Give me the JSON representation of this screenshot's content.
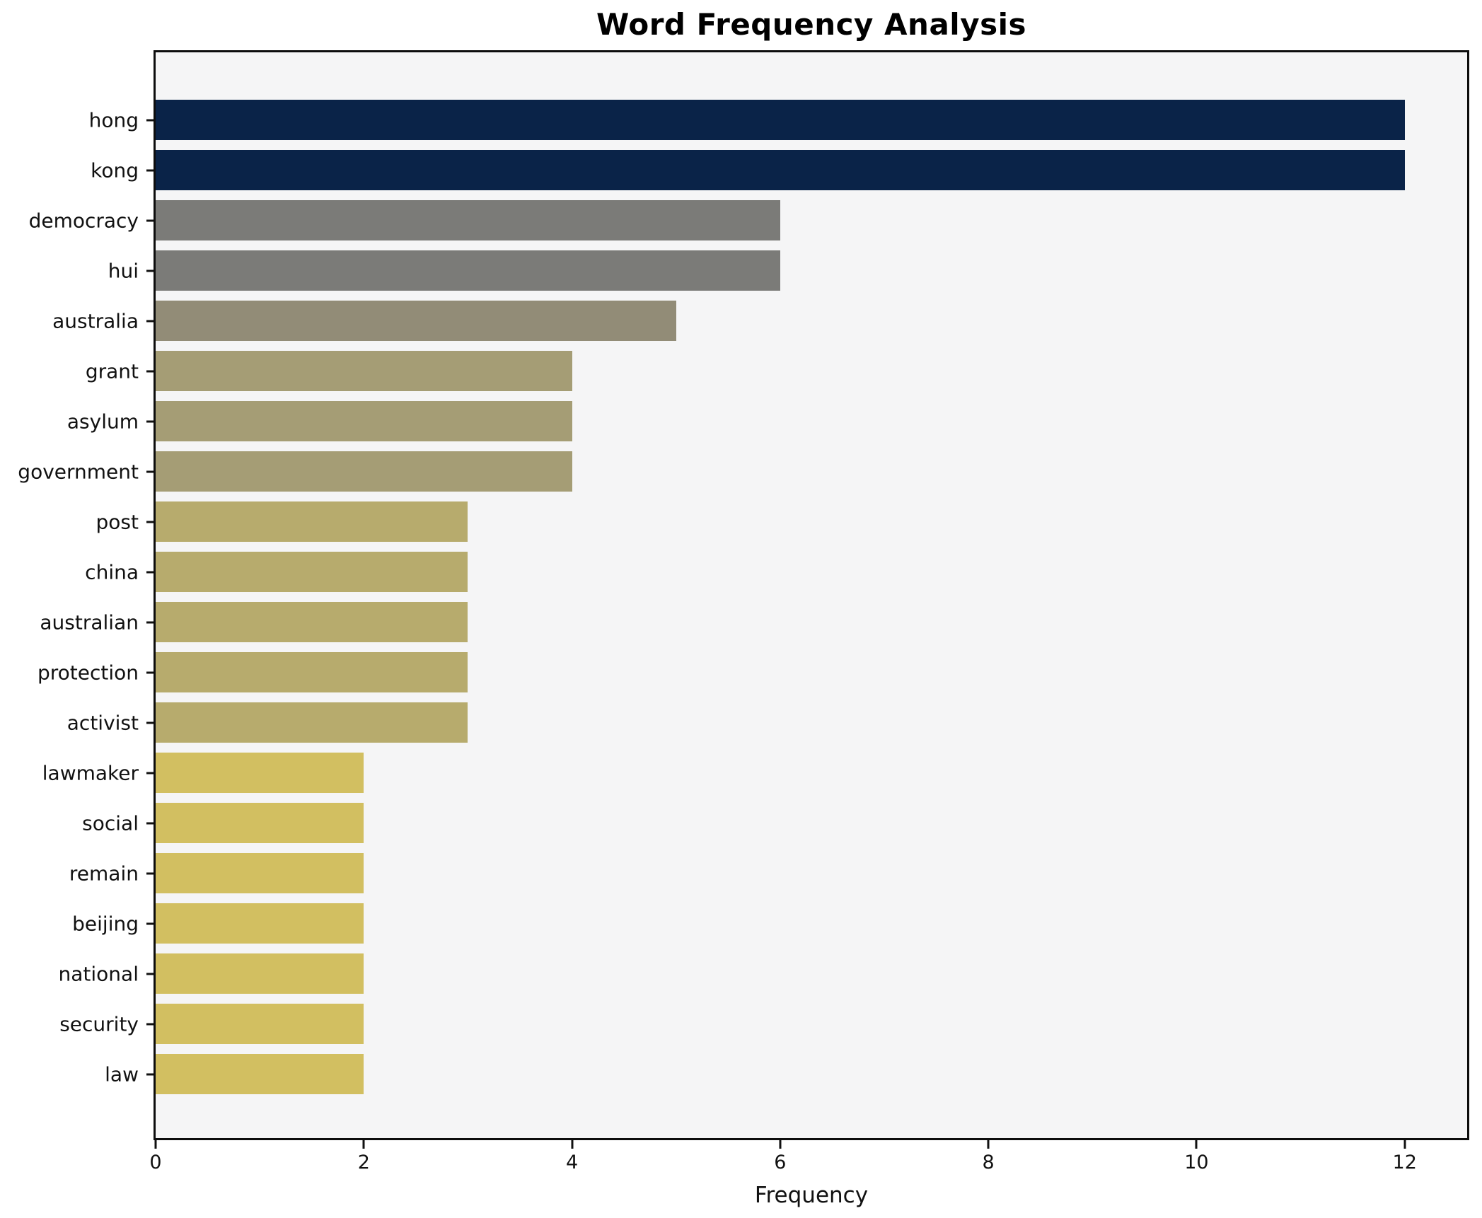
{
  "chart_data": {
    "type": "bar",
    "orientation": "horizontal",
    "title": "Word Frequency Analysis",
    "xlabel": "Frequency",
    "ylabel": "",
    "categories": [
      "hong",
      "kong",
      "democracy",
      "hui",
      "australia",
      "grant",
      "asylum",
      "government",
      "post",
      "china",
      "australian",
      "protection",
      "activist",
      "lawmaker",
      "social",
      "remain",
      "beijing",
      "national",
      "security",
      "law"
    ],
    "values": [
      12,
      12,
      6,
      6,
      5,
      4,
      4,
      4,
      3,
      3,
      3,
      3,
      3,
      2,
      2,
      2,
      2,
      2,
      2,
      2
    ],
    "bar_colors": [
      "#0a2348",
      "#0a2348",
      "#7b7b78",
      "#7b7b78",
      "#928c77",
      "#a59d75",
      "#a59d75",
      "#a59d75",
      "#b7ab6d",
      "#b7ab6d",
      "#b7ab6d",
      "#b7ab6d",
      "#b7ab6d",
      "#d2bf61",
      "#d2bf61",
      "#d2bf61",
      "#d2bf61",
      "#d2bf61",
      "#d2bf61",
      "#d2bf61"
    ],
    "xticks": [
      0,
      2,
      4,
      6,
      8,
      10,
      12
    ],
    "xlim": [
      0,
      12.6
    ],
    "grid": false,
    "legend_position": "none",
    "plot_background": "#f5f5f6",
    "figure_background": "#ffffff",
    "spine_color": "#0d0d0d",
    "text_color": "#111111"
  }
}
